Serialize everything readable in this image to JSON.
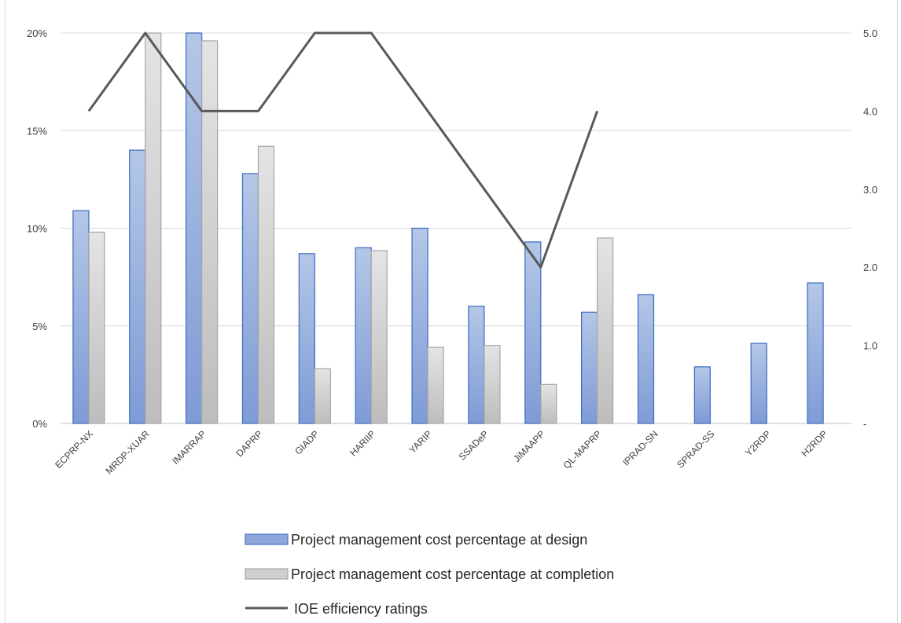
{
  "chart_data": {
    "type": "bar",
    "categories": [
      "ECPRP-NX",
      "MRDP-XUAR",
      "IMARRAP",
      "DAPRP",
      "GIADP",
      "HARIIP",
      "YARIP",
      "SSADeP",
      "JiMAAPP",
      "QL-MAPRP",
      "IPRAD-SN",
      "SPRAD-SS",
      "Y2RDP",
      "H2RDP"
    ],
    "series": [
      {
        "name": "Project management cost percentage at design",
        "kind": "bar",
        "axis": "left",
        "color": "#8fa8db",
        "values": [
          10.9,
          14.0,
          20.0,
          12.8,
          8.7,
          9.0,
          10.0,
          6.0,
          9.3,
          5.7,
          6.6,
          2.9,
          4.1,
          7.2
        ]
      },
      {
        "name": "Project management cost percentage at completion",
        "kind": "bar",
        "axis": "left",
        "color": "#cfcfcf",
        "values": [
          9.8,
          20.0,
          19.6,
          14.2,
          2.8,
          8.85,
          3.9,
          4.0,
          2.0,
          9.5,
          null,
          null,
          null,
          null
        ]
      },
      {
        "name": "IOE efficiency ratings",
        "kind": "line",
        "axis": "right",
        "color": "#595959",
        "values": [
          4.0,
          5.0,
          4.0,
          4.0,
          5.0,
          5.0,
          null,
          null,
          2.0,
          4.0,
          null,
          null,
          null,
          null
        ]
      }
    ],
    "left_axis": {
      "ylim": [
        0,
        20
      ],
      "tick_labels": [
        "0%",
        "5%",
        "10%",
        "15%",
        "20%"
      ],
      "tick_values": [
        0,
        5,
        10,
        15,
        20
      ]
    },
    "right_axis": {
      "ylim": [
        0,
        5
      ],
      "tick_labels": [
        "-",
        "1.0",
        "2.0",
        "3.0",
        "4.0",
        "5.0"
      ],
      "tick_values": [
        0,
        1,
        2,
        3,
        4,
        5
      ]
    },
    "grid": true,
    "legend_placement": "bottom"
  }
}
